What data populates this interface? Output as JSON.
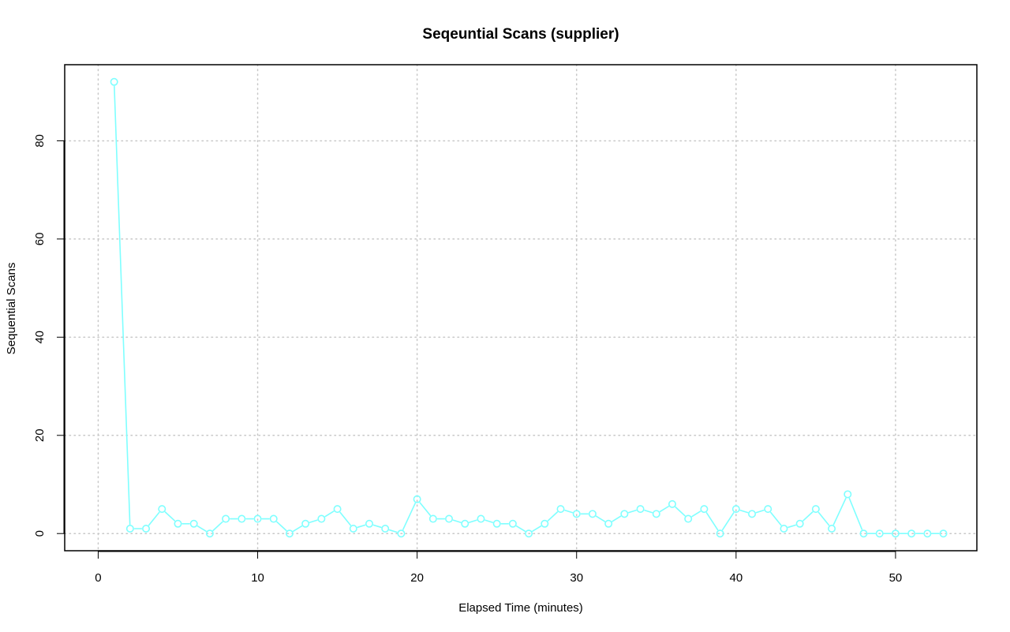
{
  "chart_data": {
    "type": "line",
    "title": "Seqeuntial Scans (supplier)",
    "xlabel": "Elapsed Time (minutes)",
    "ylabel": "Sequential Scans",
    "xlim": [
      -2.1,
      55.1
    ],
    "ylim": [
      -3.5,
      95.5
    ],
    "xticks": [
      0,
      10,
      20,
      30,
      40,
      50
    ],
    "yticks": [
      0,
      20,
      40,
      60,
      80
    ],
    "grid": true,
    "series": [
      {
        "color": "#7fffff",
        "marker": "open-circle",
        "x": [
          1,
          2,
          3,
          4,
          5,
          6,
          7,
          8,
          9,
          10,
          11,
          12,
          13,
          14,
          15,
          16,
          17,
          18,
          19,
          20,
          21,
          22,
          23,
          24,
          25,
          26,
          27,
          28,
          29,
          30,
          31,
          32,
          33,
          34,
          35,
          36,
          37,
          38,
          39,
          40,
          41,
          42,
          43,
          44,
          45,
          46,
          47,
          48,
          49,
          50,
          51,
          52,
          53
        ],
        "y": [
          92,
          1,
          1,
          5,
          2,
          2,
          0,
          3,
          3,
          3,
          3,
          0,
          2,
          3,
          5,
          1,
          2,
          1,
          0,
          7,
          3,
          3,
          2,
          3,
          2,
          2,
          0,
          2,
          5,
          4,
          4,
          2,
          4,
          5,
          4,
          6,
          3,
          5,
          0,
          5,
          4,
          5,
          1,
          2,
          5,
          1,
          8,
          0,
          0,
          0,
          0,
          0,
          0
        ]
      }
    ]
  }
}
